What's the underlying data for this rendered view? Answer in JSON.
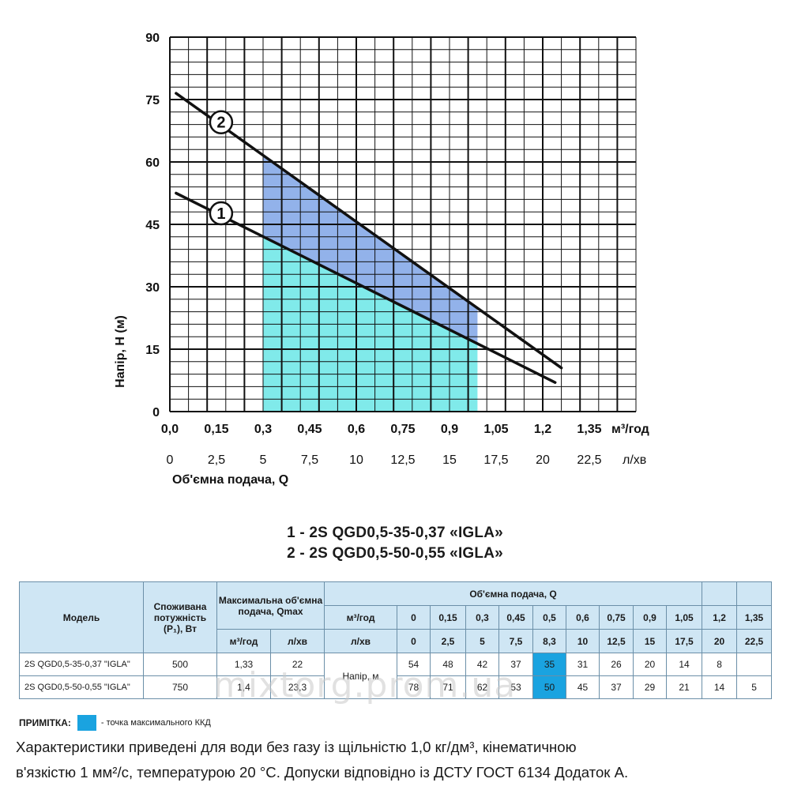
{
  "chart_data": {
    "type": "line",
    "ylabel": "Напір, Н (м)",
    "xlabel": "Об'ємна подача, Q",
    "x_unit_primary": "м³/год",
    "x_unit_secondary": "л/хв",
    "xlim": [
      0,
      1.5
    ],
    "ylim": [
      0,
      90
    ],
    "x_ticks_primary": [
      "0,0",
      "0,15",
      "0,3",
      "0,45",
      "0,6",
      "0,75",
      "0,9",
      "1,05",
      "1,2",
      "1,35"
    ],
    "x_ticks_secondary": [
      "0",
      "2,5",
      "5",
      "7,5",
      "10",
      "12,5",
      "15",
      "17,5",
      "20",
      "22,5"
    ],
    "y_ticks": [
      "0",
      "15",
      "30",
      "45",
      "60",
      "75",
      "90"
    ],
    "grid": true,
    "series": [
      {
        "name": "1",
        "x": [
          0.02,
          1.24
        ],
        "y": [
          52.5,
          7
        ]
      },
      {
        "name": "2",
        "x": [
          0.02,
          1.26
        ],
        "y": [
          76.5,
          10.5
        ]
      }
    ],
    "shaded_region": {
      "x_from": 0.3,
      "x_to": 0.99
    },
    "colors": {
      "fill_lower": "#80eaea",
      "fill_upper": "#92b2ea",
      "curve": "#111111",
      "grid": "#111111"
    }
  },
  "models": {
    "line1": "1 - 2S QGD0,5-35-0,37 «IGLA»",
    "line2": "2 - 2S QGD0,5-50-0,55 «IGLA»"
  },
  "table": {
    "h_model": "Модель",
    "h_power": "Споживана потужність (Р₁), Вт",
    "h_qmax": "Максимальна об'ємна подача, Qmax",
    "h_flow": "Об'ємна подача, Q",
    "u_m3h": "м³/год",
    "u_lmin": "л/хв",
    "u_m3h_row": "м³/год",
    "u_lmin_row": "л/хв",
    "head_label": "Напір, м",
    "flow_m3h": [
      "0",
      "0,15",
      "0,3",
      "0,45",
      "0,5",
      "0,6",
      "0,75",
      "0,9",
      "1,05",
      "1,2",
      "1,35"
    ],
    "flow_lmin": [
      "0",
      "2,5",
      "5",
      "7,5",
      "8,3",
      "10",
      "12,5",
      "15",
      "17,5",
      "20",
      "22,5"
    ],
    "rows": [
      {
        "model": "2S QGD0,5-35-0,37 \"IGLA\"",
        "power": "500",
        "qmax_m3h": "1,33",
        "qmax_lmin": "22",
        "heads": [
          "54",
          "48",
          "42",
          "37",
          "35",
          "31",
          "26",
          "20",
          "14",
          "8",
          ""
        ]
      },
      {
        "model": "2S QGD0,5-50-0,55 \"IGLA\"",
        "power": "750",
        "qmax_m3h": "1,4",
        "qmax_lmin": "23,3",
        "heads": [
          "78",
          "71",
          "62",
          "53",
          "50",
          "45",
          "37",
          "29",
          "21",
          "14",
          "5"
        ]
      }
    ]
  },
  "note": {
    "label": "ПРИМІТКА:",
    "text": "- точка максимального ККД"
  },
  "footer": {
    "line1": "Характеристики приведені для води без газу із щільністю 1,0 кг/дм³, кінематичною",
    "line2": "в'язкістю 1 мм²/с, температурою 20 °С. Допуски відповідно із ДСТУ ГОСТ 6134 Додаток А."
  },
  "watermark": "mixtorg.prom.ua"
}
